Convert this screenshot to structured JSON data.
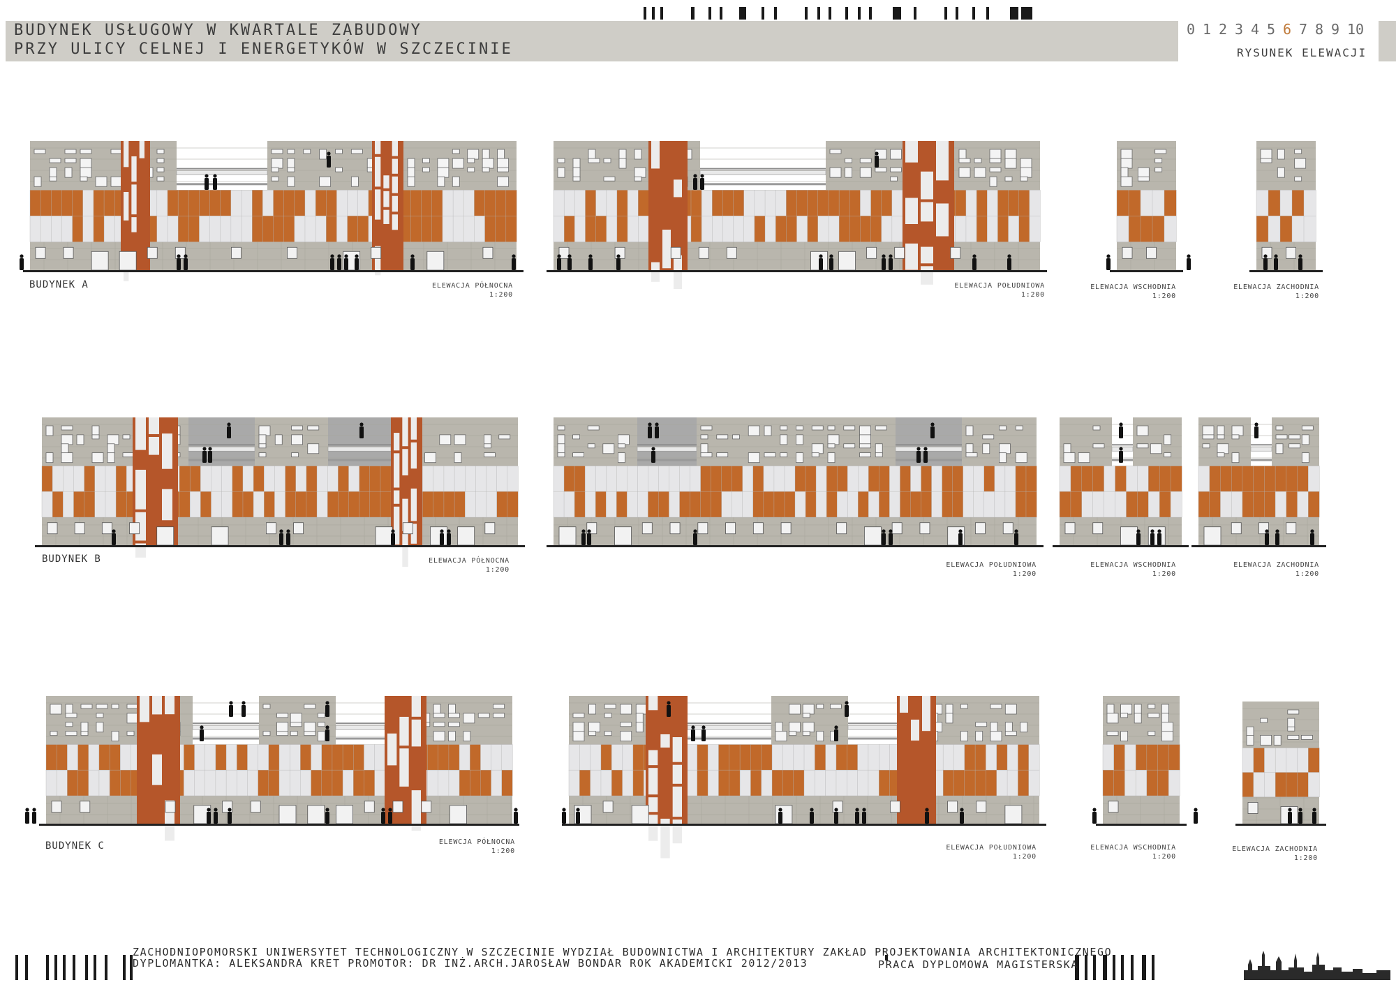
{
  "header": {
    "title_line1": "BUDYNEK USŁUGOWY W KWARTALE ZABUDOWY",
    "title_line2": "PRZY ULICY CELNEJ I ENERGETYKÓW W SZCZECINIE",
    "sheet_numbers": [
      "0",
      "1",
      "2",
      "3",
      "4",
      "5",
      "6",
      "7",
      "8",
      "9",
      "10"
    ],
    "active_sheet": "6",
    "sheet_label": "RYSUNEK ELEWACJI"
  },
  "colors": {
    "concrete": "#b9b6ad",
    "copper": "#c1692a",
    "brick": "#b5562a",
    "panel": "#e6e6e8",
    "header_band": "#cfcdc7",
    "active_number": "#c07a3a"
  },
  "buildings": [
    {
      "name": "BUDYNEK A",
      "elevations": [
        {
          "label": "ELEWACJA PÓŁNOCNA",
          "scale": "1:200"
        },
        {
          "label": "ELEWACJA POŁUDNIOWA",
          "scale": "1:200"
        },
        {
          "label": "ELEWACJA WSCHODNIA",
          "scale": "1:200"
        },
        {
          "label": "ELEWACJA ZACHODNIA",
          "scale": "1:200"
        }
      ]
    },
    {
      "name": "BUDYNEK B",
      "elevations": [
        {
          "label": "ELEWACJA PÓŁNOCNA",
          "scale": "1:200"
        },
        {
          "label": "ELEWACJA POŁUDNIOWA",
          "scale": "1:200"
        },
        {
          "label": "ELEWACJA WSCHODNIA",
          "scale": "1:200"
        },
        {
          "label": "ELEWACJA ZACHODNIA",
          "scale": "1:200"
        }
      ]
    },
    {
      "name": "BUDYNEK C",
      "elevations": [
        {
          "label": "ELEWCJA PÓŁNOCNA",
          "scale": "1:200"
        },
        {
          "label": "ELEWACJA POŁUDNIOWA",
          "scale": "1:200"
        },
        {
          "label": "ELEWACJA WSCHODNIA",
          "scale": "1:200"
        },
        {
          "label": "ELEWACJA ZACHODNIA",
          "scale": "1:200"
        }
      ]
    }
  ],
  "footer": {
    "line1": "ZACHODNIOPOMORSKI UNIWERSYTET TECHNOLOGICZNY W SZCZECINIE WYDZIAŁ BUDOWNICTWA I ARCHITEKTURY ZAKŁAD PROJEKTOWANIA ARCHITEKTONICZNEGO",
    "line2": "DYPLOMANTKA: ALEKSANDRA KRET PROMOTOR: DR INŻ.ARCH.JAROSŁAW BONDAR ROK AKADEMICKI 2012/2013",
    "thesis": "PRACA DYPLOMOWA MAGISTERSKA"
  }
}
